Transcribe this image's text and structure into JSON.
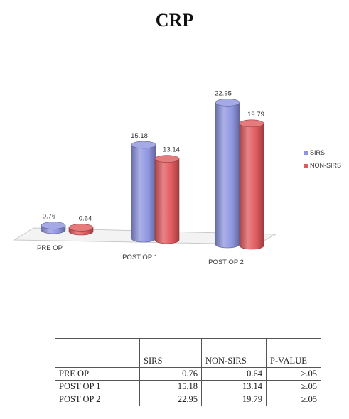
{
  "chart_data": {
    "type": "bar",
    "title": "CRP",
    "categories": [
      "PRE OP",
      "POST OP 1",
      "POST OP 2"
    ],
    "series": [
      {
        "name": "SIRS",
        "values": [
          0.76,
          15.18,
          22.95
        ],
        "color": "#8f95e0"
      },
      {
        "name": "NON-SIRS",
        "values": [
          0.64,
          13.14,
          19.79
        ],
        "color": "#e05a5e"
      }
    ],
    "data_labels": [
      [
        "0.76",
        "15.18",
        "22.95"
      ],
      [
        "0.64",
        "13.14",
        "19.79"
      ]
    ],
    "legend_position": "right",
    "grid": false,
    "three_d": true
  },
  "table": {
    "headers": [
      "",
      "SIRS",
      "NON-SIRS",
      "P-VALUE"
    ],
    "rows": [
      [
        "PRE OP",
        "0.76",
        "0.64",
        "≥.05"
      ],
      [
        "POST OP 1",
        "15.18",
        "13.14",
        "≥.05"
      ],
      [
        "POST OP 2",
        "22.95",
        "19.79",
        "≥.05"
      ]
    ]
  }
}
